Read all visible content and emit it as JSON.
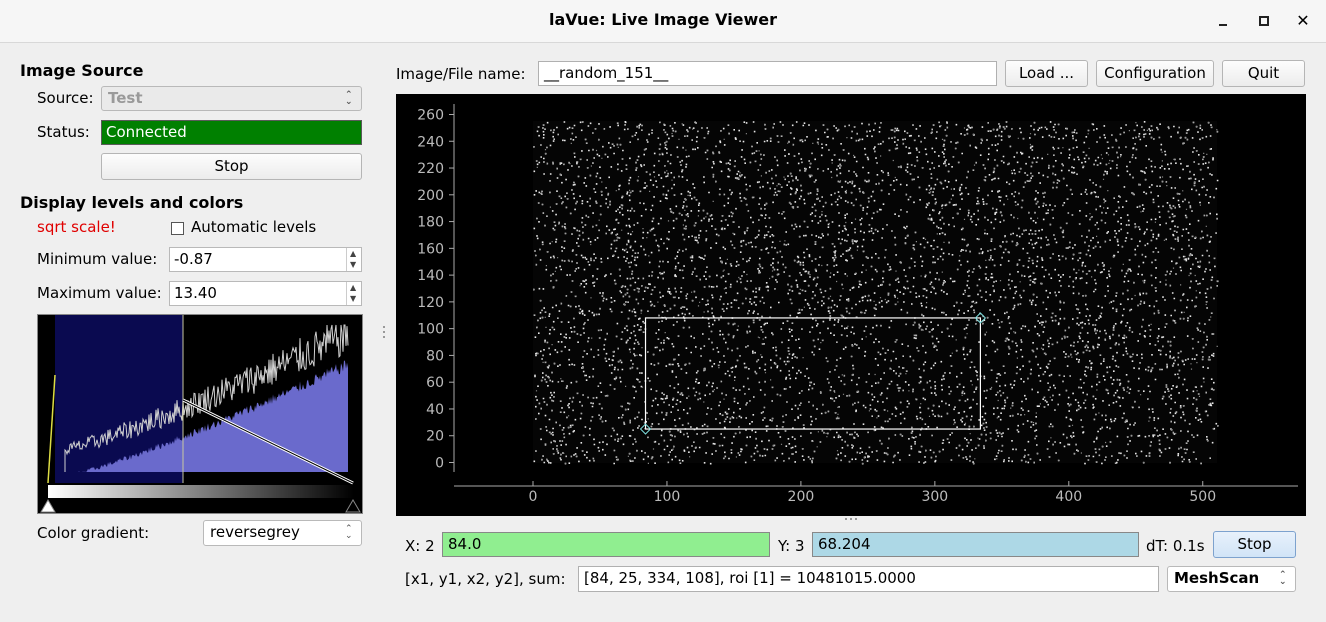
{
  "window": {
    "title": "laVue: Live Image Viewer",
    "minimize_icon": "minimize-icon",
    "maximize_icon": "maximize-icon",
    "close_glyph": "✕"
  },
  "image_source": {
    "section_title": "Image Source",
    "source_label": "Source:",
    "source_value": "Test",
    "status_label": "Status:",
    "status_value": "Connected",
    "status_color": "#008000",
    "stop_label": "Stop"
  },
  "display": {
    "section_title": "Display levels and colors",
    "scale_warning": "sqrt scale!",
    "auto_levels_label": "Automatic levels",
    "auto_levels_checked": false,
    "min_label": "Minimum value:",
    "min_value": "-0.87",
    "max_label": "Maximum value:",
    "max_value": "13.40",
    "gradient_label": "Color gradient:",
    "gradient_value": "reversegrey"
  },
  "header": {
    "file_label": "Image/File name:",
    "file_value": "__random_151__",
    "load_label": "Load ...",
    "config_label": "Configuration",
    "quit_label": "Quit"
  },
  "plot": {
    "x_ticks": [
      "0",
      "100",
      "200",
      "300",
      "400",
      "500"
    ],
    "y_ticks": [
      "260",
      "240",
      "220",
      "200",
      "180",
      "160",
      "140",
      "120",
      "100",
      "80",
      "60",
      "40",
      "20",
      "0"
    ],
    "roi": {
      "x1": 84,
      "y1": 25,
      "x2": 334,
      "y2": 108
    }
  },
  "footer": {
    "x_label": "X: 2",
    "x_value": "84.0",
    "x_color": "#90ee90",
    "y_label": "Y: 3",
    "y_value": "68.204",
    "y_color": "#add8e6",
    "dt_label": "dT: 0.1s",
    "stop_label": "Stop",
    "roi_label": "[x1, y1, x2, y2], sum:",
    "roi_value": "[84, 25, 334, 108], roi [1] = 10481015.0000",
    "mode_value": "MeshScan"
  }
}
